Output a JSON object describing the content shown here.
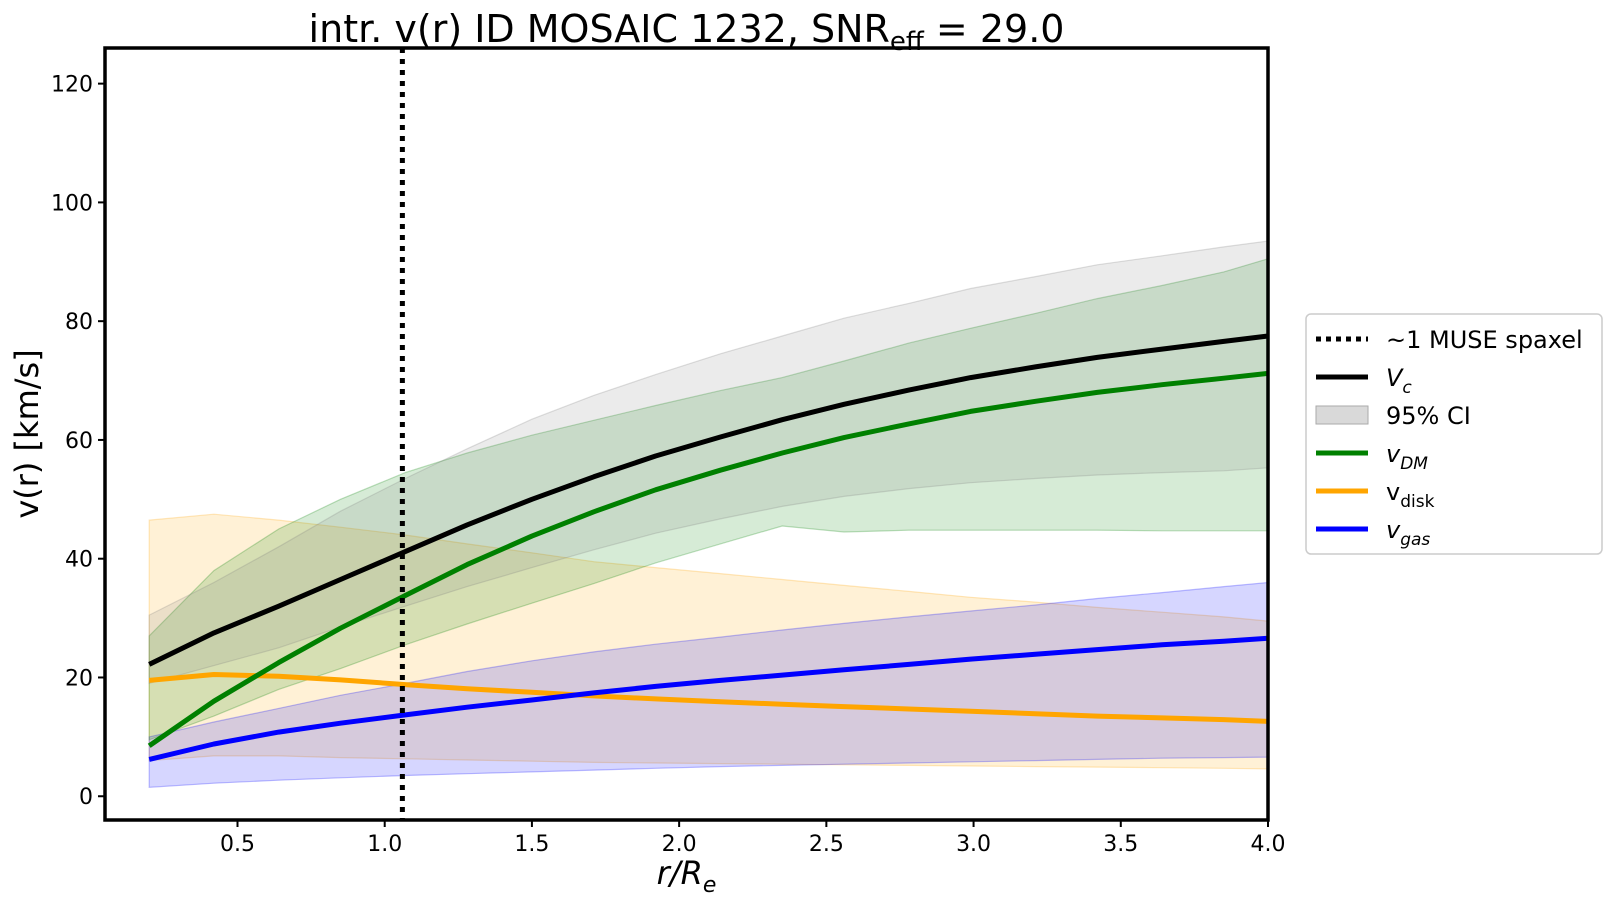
{
  "chart_data": {
    "type": "line",
    "title": {
      "main": "intr. v(r) ID MOSAIC 1232, SNR",
      "sub": "eff",
      "suffix": " = 29.0"
    },
    "xlabel": {
      "main": "r/R",
      "sub": "e"
    },
    "ylabel": "v(r) [km/s]",
    "xlim": [
      0.05,
      4.0
    ],
    "ylim": [
      -4,
      126
    ],
    "xticks": [
      "0.5",
      "1.0",
      "1.5",
      "2.0",
      "2.5",
      "3.0",
      "3.5",
      "4.0"
    ],
    "xtick_values": [
      0.5,
      1.0,
      1.5,
      2.0,
      2.5,
      3.0,
      3.5,
      4.0
    ],
    "yticks": [
      "0",
      "20",
      "40",
      "60",
      "80",
      "100",
      "120"
    ],
    "ytick_values": [
      0,
      20,
      40,
      60,
      80,
      100,
      120
    ],
    "grid": false,
    "legend_position": "right, outside plot",
    "vline": {
      "x": 1.06,
      "style": "dotted",
      "color": "#000000",
      "label": "~1 MUSE spaxel"
    },
    "series": [
      {
        "name": "V",
        "sub": "c",
        "italic": true,
        "color": "#000000",
        "x": [
          0.2,
          0.42,
          0.64,
          0.85,
          1.07,
          1.28,
          1.5,
          1.71,
          1.92,
          2.14,
          2.35,
          2.56,
          2.78,
          2.99,
          3.21,
          3.42,
          3.64,
          3.85,
          4.0
        ],
        "y": [
          22.2,
          27.5,
          32,
          36.5,
          41.2,
          45.7,
          50,
          53.8,
          57.3,
          60.5,
          63.4,
          66,
          68.4,
          70.5,
          72.3,
          73.9,
          75.3,
          76.6,
          77.5
        ],
        "band_lower": [
          19,
          22,
          25,
          28.5,
          32,
          35.3,
          38.5,
          41.5,
          44.3,
          46.7,
          48.8,
          50.5,
          51.8,
          52.8,
          53.5,
          54.1,
          54.5,
          54.8,
          55.3
        ],
        "band_upper": [
          30.5,
          36,
          42,
          48,
          53.5,
          58.5,
          63.5,
          67.5,
          71,
          74.5,
          77.5,
          80.5,
          83,
          85.5,
          87.5,
          89.5,
          91,
          92.5,
          93.5
        ],
        "band_color": "#808080"
      },
      {
        "name": "v",
        "sub": "DM",
        "italic": true,
        "color": "#008000",
        "x": [
          0.2,
          0.42,
          0.64,
          0.85,
          1.07,
          1.28,
          1.5,
          1.71,
          1.92,
          2.14,
          2.35,
          2.56,
          2.78,
          2.99,
          3.21,
          3.42,
          3.64,
          3.85,
          4.0
        ],
        "y": [
          8.5,
          16,
          22.5,
          28.3,
          33.8,
          39,
          43.8,
          47.9,
          51.6,
          54.9,
          57.8,
          60.4,
          62.7,
          64.8,
          66.5,
          68,
          69.3,
          70.4,
          71.2
        ],
        "band_lower": [
          9.5,
          13.5,
          18,
          21.5,
          25.5,
          29,
          32.5,
          35.8,
          39.3,
          42.5,
          45.5,
          44.5,
          44.8,
          44.8,
          44.8,
          44.8,
          44.7,
          44.7,
          44.7
        ],
        "band_upper": [
          27,
          38,
          45,
          50,
          54.5,
          57.8,
          60.8,
          63.3,
          65.8,
          68.3,
          70.5,
          73.3,
          76.3,
          78.8,
          81.3,
          83.8,
          86,
          88.3,
          90.5
        ],
        "band_color": "#008000"
      },
      {
        "name": "v",
        "sub": "disk",
        "italic": false,
        "color": "#FFA500",
        "x": [
          0.2,
          0.42,
          0.64,
          0.85,
          1.07,
          1.28,
          1.5,
          1.71,
          1.92,
          2.14,
          2.35,
          2.56,
          2.78,
          2.99,
          3.21,
          3.42,
          3.64,
          3.85,
          4.0
        ],
        "y": [
          19.5,
          20.5,
          20.2,
          19.6,
          18.8,
          18.1,
          17.5,
          16.9,
          16.4,
          15.9,
          15.5,
          15.1,
          14.7,
          14.3,
          13.9,
          13.5,
          13.2,
          12.9,
          12.6
        ],
        "band_lower": [
          6,
          6.8,
          6.8,
          6.5,
          6.3,
          6.1,
          5.9,
          5.7,
          5.6,
          5.5,
          5.4,
          5.3,
          5.2,
          5.1,
          5,
          4.9,
          4.8,
          4.7,
          4.6
        ],
        "band_upper": [
          46.5,
          47.5,
          46.5,
          45.3,
          44,
          42.5,
          41,
          39.5,
          38.5,
          37.5,
          36.5,
          35.5,
          34.5,
          33.5,
          32.7,
          31.8,
          31,
          30.2,
          29.5
        ],
        "band_color": "#FFA500"
      },
      {
        "name": "v",
        "sub": "gas",
        "italic": true,
        "color": "#0000FF",
        "x": [
          0.2,
          0.42,
          0.64,
          0.85,
          1.07,
          1.28,
          1.5,
          1.71,
          1.92,
          2.14,
          2.35,
          2.56,
          2.78,
          2.99,
          3.21,
          3.42,
          3.64,
          3.85,
          4.0
        ],
        "y": [
          6.2,
          8.8,
          10.8,
          12.3,
          13.7,
          15,
          16.2,
          17.4,
          18.5,
          19.5,
          20.4,
          21.3,
          22.2,
          23.1,
          23.9,
          24.7,
          25.5,
          26.1,
          26.6
        ],
        "band_lower": [
          1.5,
          2.2,
          2.7,
          3.1,
          3.5,
          3.8,
          4.1,
          4.4,
          4.7,
          5,
          5.2,
          5.4,
          5.6,
          5.8,
          6,
          6.2,
          6.4,
          6.5,
          6.6
        ],
        "band_upper": [
          10,
          12.5,
          14.8,
          17,
          19,
          21,
          22.8,
          24.3,
          25.6,
          26.8,
          28,
          29.1,
          30.2,
          31.2,
          32.2,
          33.3,
          34.3,
          35.3,
          36
        ],
        "band_color": "#0000FF"
      }
    ],
    "legend": [
      {
        "kind": "dotted-line",
        "color": "#000000",
        "label": "~1 MUSE spaxel"
      },
      {
        "kind": "line",
        "color": "#000000",
        "label": "V",
        "sub": "c",
        "italic": true
      },
      {
        "kind": "patch",
        "color": "#C0C0C0",
        "label": "95% CI"
      },
      {
        "kind": "line",
        "color": "#008000",
        "label": "v",
        "sub": "DM",
        "italic": true
      },
      {
        "kind": "line",
        "color": "#FFA500",
        "label": "v",
        "sub": "disk",
        "italic": false
      },
      {
        "kind": "line",
        "color": "#0000FF",
        "label": "v",
        "sub": "gas",
        "italic": true
      }
    ]
  }
}
